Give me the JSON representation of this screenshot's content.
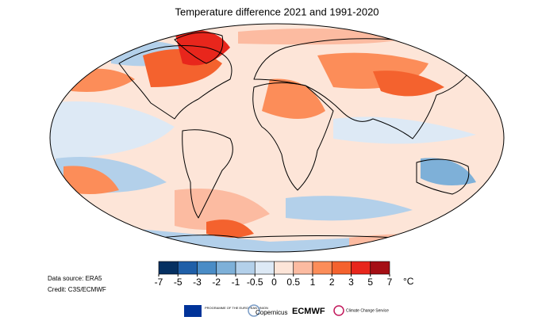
{
  "title": "Temperature difference 2021 and 1991-2020",
  "colorbar": {
    "ticks": [
      -7,
      -5,
      -3,
      -2,
      -1,
      -0.5,
      0,
      0.5,
      1,
      2,
      3,
      5,
      7
    ],
    "colors": [
      "#053061",
      "#1f5fa8",
      "#4a8cc6",
      "#7eb0d8",
      "#b3d0ea",
      "#dde9f5",
      "#fde5d8",
      "#fcbba1",
      "#fc8d59",
      "#f4622e",
      "#e8261c",
      "#a50f15"
    ],
    "unit": "°C"
  },
  "notes": [
    "Data source: ERA5",
    "Credit: C3S/ECMWF"
  ],
  "logos": [
    "PROGRAMME OF THE EUROPEAN UNION",
    "Copernicus",
    "ECMWF",
    "Climate Change Service"
  ]
}
